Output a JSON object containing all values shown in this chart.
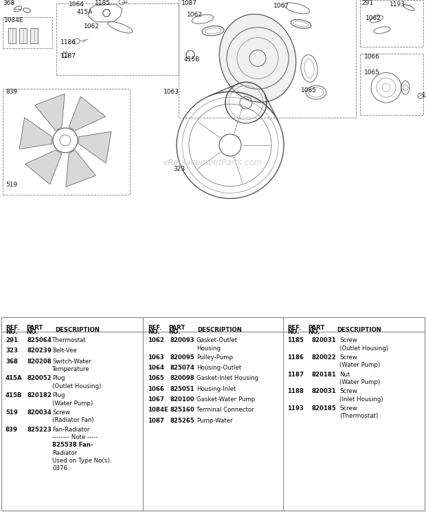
{
  "bg_color": "#ffffff",
  "watermark": "eReplacementParts.com",
  "col1_data": [
    [
      "291",
      "825064",
      "Thermostat"
    ],
    [
      "323",
      "820239",
      "Belt-Vee"
    ],
    [
      "368",
      "820208",
      "Switch-Water\nTemperature"
    ],
    [
      "415A",
      "820052",
      "Plug\n(Outlet Housing)"
    ],
    [
      "415B",
      "820182",
      "Plug\n(Water Pump)"
    ],
    [
      "519",
      "820034",
      "Screw\n(Radiator Fan)"
    ],
    [
      "839",
      "825223",
      "Fan-Radiator\n-------- Note -----\n825538 Fan-\nRadiator\nUsed on Type No(s).\n0376."
    ]
  ],
  "col2_data": [
    [
      "1062",
      "820093",
      "Gasket-Outlet\nHousing"
    ],
    [
      "1063",
      "820095",
      "Pulley-Pump"
    ],
    [
      "1064",
      "825074",
      "Housing-Outlet"
    ],
    [
      "1065",
      "820098",
      "Gasket-Inlet Housing"
    ],
    [
      "1066",
      "825051",
      "Housing-Inlet"
    ],
    [
      "1067",
      "820100",
      "Gasket-Water Pump"
    ],
    [
      "1084E",
      "825160",
      "Terminal Connector"
    ],
    [
      "1087",
      "825265",
      "Pump-Water"
    ]
  ],
  "col3_data": [
    [
      "1185",
      "820031",
      "Screw\n(Outlet Housing)"
    ],
    [
      "1186",
      "820022",
      "Screw\n(Water Pump)"
    ],
    [
      "1187",
      "820181",
      "Nut\n(Water Pump)"
    ],
    [
      "1188",
      "820031",
      "Screw\n(Inlet Housing)"
    ],
    [
      "1193",
      "820185",
      "Screw\n(Thermostat)"
    ]
  ]
}
